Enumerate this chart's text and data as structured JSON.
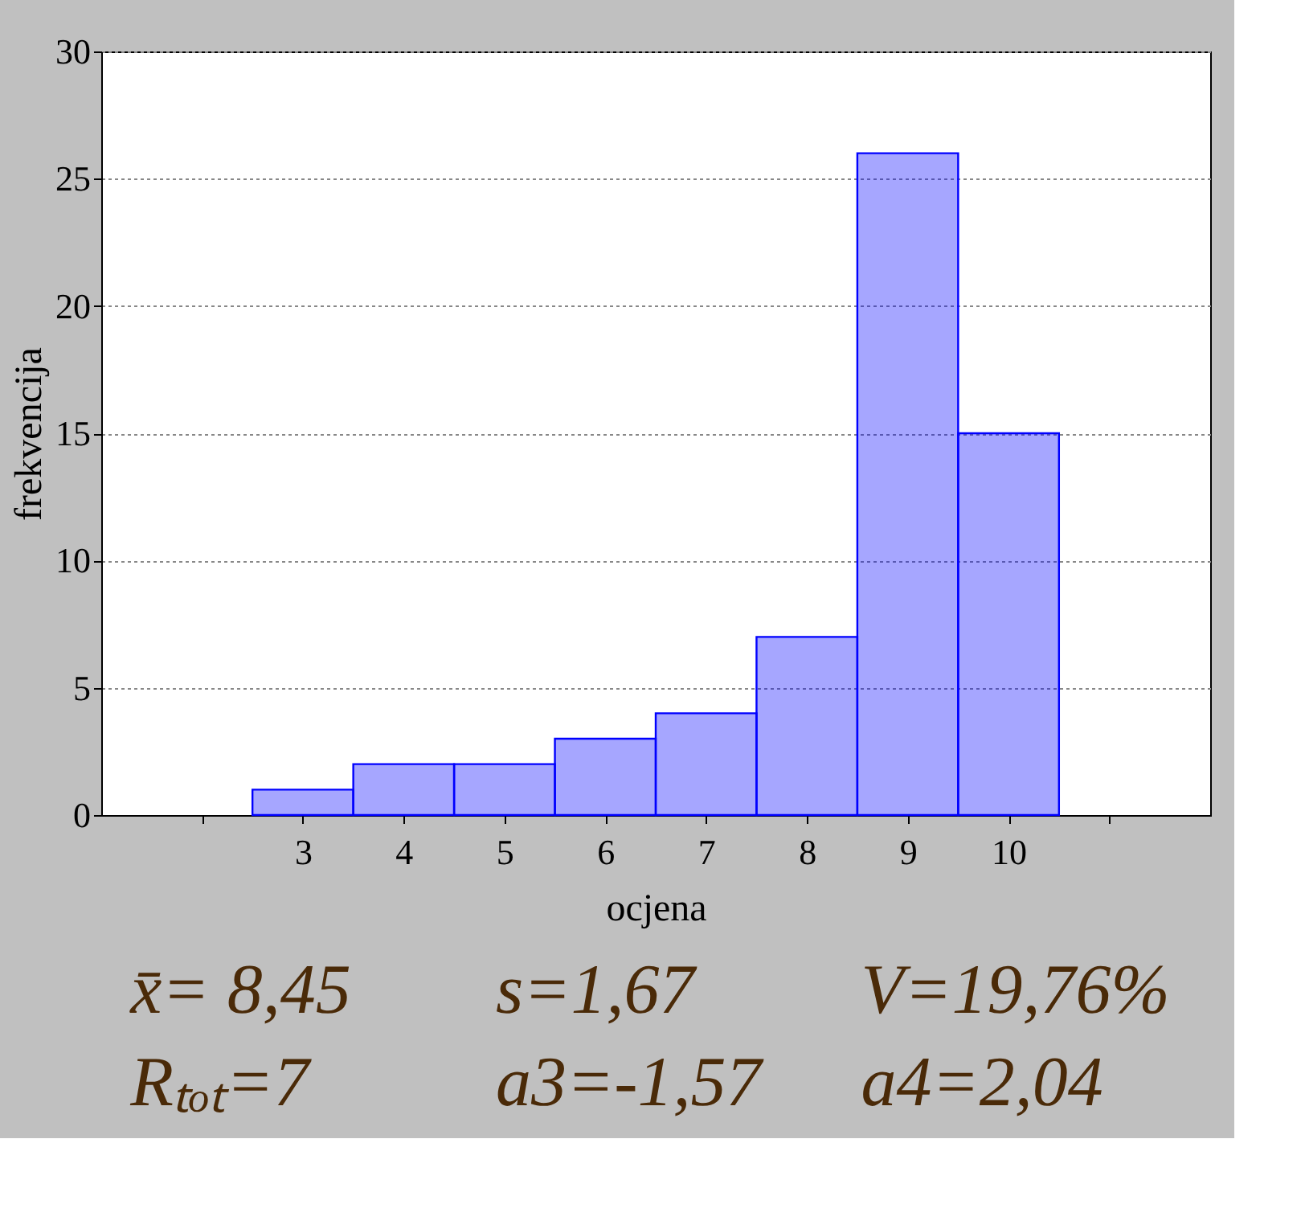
{
  "chart_data": {
    "type": "histogram",
    "xlabel": "ocjena",
    "ylabel": "frekvencija",
    "bins": [
      2.5,
      3.5,
      4.5,
      5.5,
      6.5,
      7.5,
      8.5,
      9.5,
      10.5
    ],
    "values": [
      1,
      2,
      2,
      3,
      4,
      7,
      26,
      15
    ],
    "color": "#0000ff",
    "xlim": [
      1,
      12
    ],
    "xticks": [
      {
        "value": 2,
        "label": null
      },
      3,
      4,
      5,
      6,
      7,
      8,
      9,
      10,
      {
        "value": 11,
        "label": null
      }
    ],
    "ylim": [
      0,
      30
    ],
    "yticks": [
      0,
      5,
      10,
      15,
      20,
      25,
      30
    ],
    "grid": "y",
    "annotations": [
      "x̄= 8,45",
      "s=1,67",
      "V=19,76%",
      "Rₜₒₜ=7",
      "a3=-1,57",
      "a4=2,04"
    ]
  }
}
